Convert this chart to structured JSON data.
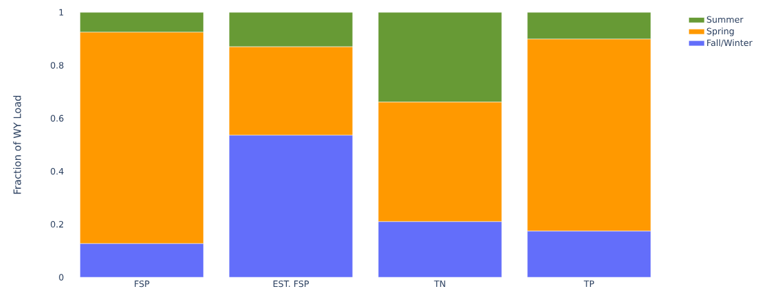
{
  "chart_data": {
    "type": "bar",
    "stacked": true,
    "ylabel": "Fraction of WY Load",
    "categories": [
      "FSP",
      "EST. FSP",
      "TN",
      "TP"
    ],
    "series": [
      {
        "name": "Fall/Winter",
        "color": "#636efa",
        "values": [
          0.127,
          0.536,
          0.21,
          0.174
        ]
      },
      {
        "name": "Spring",
        "color": "#ff9900",
        "values": [
          0.798,
          0.334,
          0.451,
          0.725
        ]
      },
      {
        "name": "Summer",
        "color": "#679a35",
        "values": [
          0.075,
          0.13,
          0.339,
          0.101
        ]
      }
    ],
    "ylim": [
      0,
      1
    ],
    "yticks": [
      0,
      0.2,
      0.4,
      0.6,
      0.8,
      1
    ],
    "grid": false,
    "legend": "top right"
  }
}
